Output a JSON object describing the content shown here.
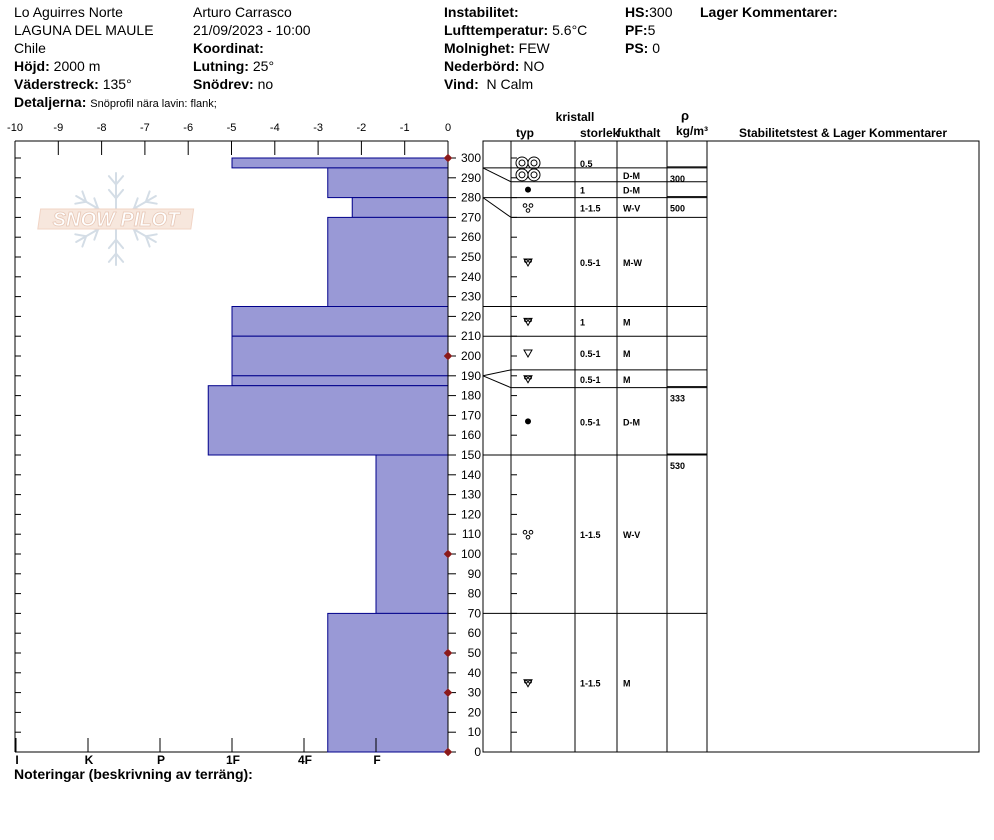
{
  "header": {
    "location": "Lo Aguirres Norte",
    "area": "LAGUNA DEL MAULE",
    "country": "Chile",
    "elevation_label": "Höjd:",
    "elevation_value": "2000 m",
    "aspect_label": "Väderstreck:",
    "aspect_value": "135°",
    "details_label": "Detaljerna:",
    "details_value": "Snöprofil nära lavin: flank;",
    "observer": "Arturo Carrasco",
    "datetime": "21/09/2023 - 10:00",
    "coord_label": "Koordinat:",
    "slope_label": "Lutning:",
    "slope_value": "25°",
    "drift_label": "Snödrev:",
    "drift_value": "no",
    "instability_label": "Instabilitet:",
    "air_temp_label": "Lufttemperatur:",
    "air_temp_value": "5.6°C",
    "sky_label": "Molnighet:",
    "sky_value": "FEW",
    "precip_label": "Nederbörd:",
    "precip_value": "NO",
    "wind_label": "Vind:",
    "wind_value": "N Calm",
    "hs_label": "HS:",
    "hs_value": "300",
    "pf_label": "PF:",
    "pf_value": "5",
    "ps_label": "PS:",
    "ps_value": "0",
    "layer_comments_label": "Lager Kommentarer:"
  },
  "logo_text": "SNOW PILOT",
  "notes_label": "Noteringar (beskrivning av terräng):",
  "table_headers": {
    "crystal": "kristall",
    "type": "typ",
    "size": "storlek",
    "moisture": "fukthalt",
    "rho": "ρ",
    "density_unit": "kg/m³",
    "stability": "Stabilitetstest & Lager Kommentarer"
  },
  "colors": {
    "hardness_fill": "#9999d6",
    "hardness_stroke": "#00008b",
    "marker": "#8b1a1a"
  },
  "chart_data": {
    "type": "bar",
    "orientation": "horizontal",
    "top_axis": {
      "ticks": [
        -10,
        -9,
        -8,
        -7,
        -6,
        -5,
        -4,
        -3,
        -2,
        -1,
        0
      ]
    },
    "bottom_axis": {
      "labels": [
        "I",
        "K",
        "P",
        "1F",
        "4F",
        "F"
      ]
    },
    "height_axis": {
      "min": 0,
      "max": 300,
      "ticks": [
        0,
        10,
        20,
        30,
        40,
        50,
        60,
        70,
        80,
        90,
        100,
        110,
        120,
        130,
        140,
        150,
        160,
        170,
        180,
        190,
        200,
        210,
        220,
        230,
        240,
        250,
        260,
        270,
        280,
        290,
        300
      ]
    },
    "hardness_layers": [
      {
        "bottom": 295,
        "top": 300,
        "hardness": "1F"
      },
      {
        "bottom": 280,
        "top": 295,
        "hardness": "4F-"
      },
      {
        "bottom": 270,
        "top": 280,
        "hardness": "F+"
      },
      {
        "bottom": 225,
        "top": 270,
        "hardness": "4F-"
      },
      {
        "bottom": 210,
        "top": 225,
        "hardness": "1F"
      },
      {
        "bottom": 190,
        "top": 210,
        "hardness": "1F"
      },
      {
        "bottom": 185,
        "top": 190,
        "hardness": "1F"
      },
      {
        "bottom": 150,
        "top": 185,
        "hardness": "1F+"
      },
      {
        "bottom": 70,
        "top": 150,
        "hardness": "F"
      },
      {
        "bottom": 0,
        "top": 70,
        "hardness": "4F-"
      }
    ],
    "markers": [
      300,
      200,
      100,
      50,
      30,
      0
    ],
    "layer_rows": [
      {
        "bottom": 295,
        "top": 300,
        "crystal_icon": "rounded-grain-ring-icon",
        "size": "0.5",
        "moisture": "",
        "density": ""
      },
      {
        "bottom": 288,
        "top": 295,
        "crystal_icon": "rounded-grain-ring-icon",
        "size": "",
        "moisture": "D-M",
        "density": "300"
      },
      {
        "bottom": 280,
        "top": 288,
        "crystal_icon": "rounded-grain-icon",
        "size": "1",
        "moisture": "D-M",
        "density": ""
      },
      {
        "bottom": 270,
        "top": 280,
        "crystal_icon": "melt-form-icon",
        "size": "1-1.5",
        "moisture": "W-V",
        "density": "500"
      },
      {
        "bottom": 225,
        "top": 270,
        "crystal_icon": "depth-hoar-icon",
        "size": "0.5-1",
        "moisture": "M-W",
        "density": ""
      },
      {
        "bottom": 210,
        "top": 225,
        "crystal_icon": "depth-hoar-icon",
        "size": "1",
        "moisture": "M",
        "density": ""
      },
      {
        "bottom": 193,
        "top": 210,
        "crystal_icon": "faceted-icon",
        "size": "0.5-1",
        "moisture": "M",
        "density": ""
      },
      {
        "bottom": 184,
        "top": 193,
        "crystal_icon": "depth-hoar-icon",
        "size": "0.5-1",
        "moisture": "M",
        "density": ""
      },
      {
        "bottom": 150,
        "top": 184,
        "crystal_icon": "rounded-grain-icon",
        "size": "0.5-1",
        "moisture": "D-M",
        "density": "333"
      },
      {
        "bottom": 70,
        "top": 150,
        "crystal_icon": "melt-form-icon",
        "size": "1-1.5",
        "moisture": "W-V",
        "density": "530"
      },
      {
        "bottom": 0,
        "top": 70,
        "crystal_icon": "depth-hoar-icon",
        "size": "1-1.5",
        "moisture": "M",
        "density": ""
      }
    ]
  }
}
